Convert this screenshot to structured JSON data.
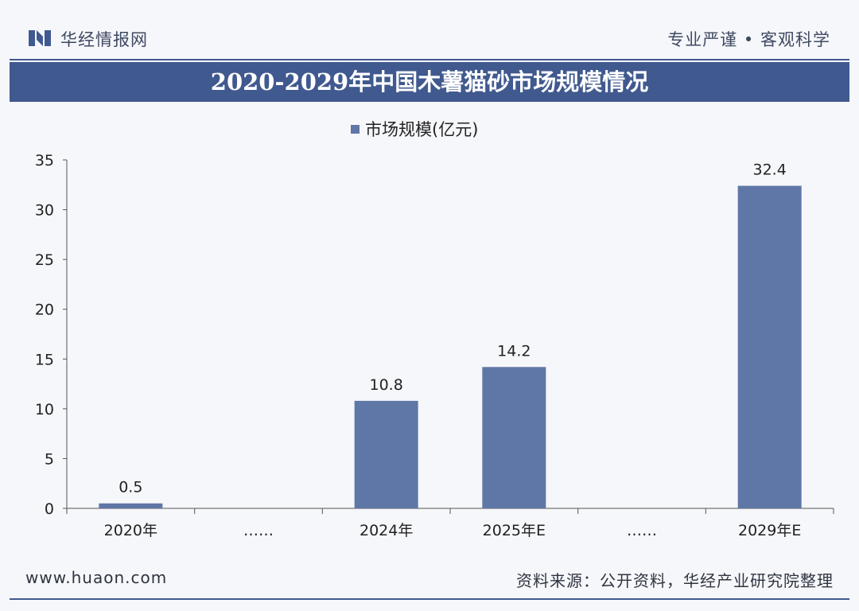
{
  "header": {
    "brand": "华经情报网",
    "slogan": "专业严谨 • 客观科学"
  },
  "colors": {
    "primary": "#40598f",
    "bar": "#5f77a6",
    "background": "#f6f7fa"
  },
  "footer": {
    "url": "www.huaon.com",
    "source": "资料来源：公开资料，华经产业研究院整理"
  },
  "chart_data": {
    "type": "bar",
    "title": "2020-2029年中国木薯猫砂市场规模情况",
    "categories": [
      "2020年",
      "……",
      "2024年",
      "2025年E",
      "……",
      "2029年E"
    ],
    "series": [
      {
        "name": "市场规模(亿元)",
        "values": [
          0.5,
          null,
          10.8,
          14.2,
          null,
          32.4
        ]
      }
    ],
    "data_labels": [
      "0.5",
      "",
      "10.8",
      "14.2",
      "",
      "32.4"
    ],
    "ylim": [
      0,
      35
    ],
    "yticks": [
      0,
      5,
      10,
      15,
      20,
      25,
      30,
      35
    ],
    "grid": false,
    "legend_position": "top-center",
    "xlabel": "",
    "ylabel": ""
  }
}
